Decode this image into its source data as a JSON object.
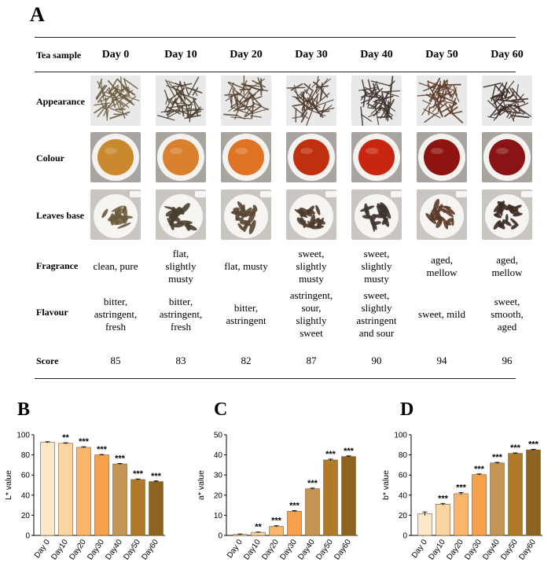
{
  "panel_a": {
    "letter": "A",
    "header_label": "Tea sample",
    "days": [
      "Day 0",
      "Day 10",
      "Day 20",
      "Day 30",
      "Day 40",
      "Day 50",
      "Day 60"
    ],
    "rows": {
      "appearance": "Appearance",
      "colour": "Colour",
      "leaves_base": "Leaves base",
      "fragrance": "Fragrance",
      "flavour": "Flavour",
      "score": "Score"
    },
    "fragrance": [
      "clean, pure",
      "flat,\nslightly\nmusty",
      "flat,  musty",
      "sweet,\nslightly\nmusty",
      "sweet,\nslightly\nmusty",
      "aged,\nmellow",
      "aged,\nmellow"
    ],
    "flavour": [
      "bitter,\nastringent,\nfresh",
      "bitter,\nastringent,\nfresh",
      "bitter,\nastringent",
      "astringent,\nsour,\nslightly\nsweet",
      "sweet,\nslightly\nastringent\nand sour",
      "sweet, mild",
      "sweet,\nsmooth,\naged"
    ],
    "scores": [
      "85",
      "83",
      "82",
      "87",
      "90",
      "94",
      "96"
    ],
    "colours": {
      "liquor": [
        "#c9892c",
        "#d9812e",
        "#e07425",
        "#c0300f",
        "#c8260f",
        "#8e1410",
        "#8a1315"
      ],
      "leaf": [
        "#6b5a3c",
        "#4a3f2e",
        "#5a4632",
        "#4d3a2c",
        "#3e332c",
        "#5a3a26",
        "#3b2a22"
      ]
    }
  },
  "chart_data": [
    {
      "type": "bar",
      "letter": "B",
      "categories": [
        "Day 0",
        "Day10",
        "Day20",
        "Day30",
        "Day40",
        "Day50",
        "Day60"
      ],
      "values": [
        92.5,
        91.5,
        87.5,
        80,
        71,
        55.5,
        53.5
      ],
      "errors": [
        0.6,
        0.5,
        0.6,
        0.4,
        0.5,
        0.6,
        0.6
      ],
      "significance": [
        "",
        "**",
        "***",
        "***",
        "***",
        "***",
        "***"
      ],
      "ylabel": "L* value",
      "ylim": [
        0,
        100
      ],
      "yticks": [
        0,
        20,
        40,
        60,
        80,
        100
      ],
      "colors": [
        "#fde7c9",
        "#fbd5a2",
        "#f9b56c",
        "#f5a04a",
        "#c49552",
        "#b1792a",
        "#8f621f"
      ]
    },
    {
      "type": "bar",
      "letter": "C",
      "categories": [
        "Day 0",
        "Day10",
        "Day20",
        "Day30",
        "Day40",
        "Day50",
        "Day60"
      ],
      "values": [
        0.5,
        1.5,
        4.5,
        12,
        23.2,
        37.5,
        39.2
      ],
      "errors": [
        0.2,
        0.2,
        0.3,
        0.3,
        0.3,
        0.4,
        0.3
      ],
      "significance": [
        "",
        "**",
        "***",
        "***",
        "***",
        "***",
        "***"
      ],
      "ylabel": "a* value",
      "ylim": [
        0,
        50
      ],
      "yticks": [
        0,
        10,
        20,
        30,
        40,
        50
      ],
      "colors": [
        "#fde7c9",
        "#fbd5a2",
        "#f9b56c",
        "#f5a04a",
        "#c49552",
        "#b1792a",
        "#8f621f"
      ]
    },
    {
      "type": "bar",
      "letter": "D",
      "categories": [
        "Day 0",
        "Day10",
        "Day20",
        "Day30",
        "Day40",
        "Day50",
        "Day60"
      ],
      "values": [
        21.5,
        31,
        41.5,
        60.5,
        72,
        81.5,
        85
      ],
      "errors": [
        1.8,
        0.8,
        1.0,
        0.6,
        0.6,
        0.5,
        0.5
      ],
      "significance": [
        "",
        "***",
        "***",
        "***",
        "***",
        "***",
        "***"
      ],
      "ylabel": "b* value",
      "ylim": [
        0,
        100
      ],
      "yticks": [
        0,
        20,
        40,
        60,
        80,
        100
      ],
      "colors": [
        "#fde7c9",
        "#fbd5a2",
        "#f9b56c",
        "#f5a04a",
        "#c49552",
        "#b1792a",
        "#8f621f"
      ]
    }
  ]
}
